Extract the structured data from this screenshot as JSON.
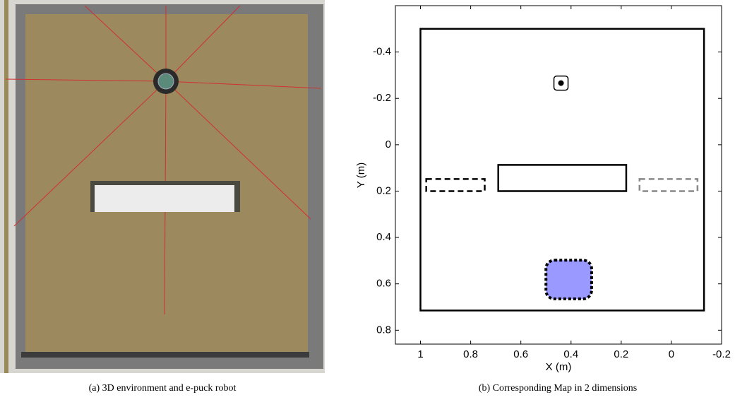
{
  "captions": [
    "(a)  3D environment and e-puck robot",
    "(b)  Corresponding Map in 2 dimensions"
  ],
  "chart_data": {
    "type": "map",
    "xlabel": "X (m)",
    "ylabel": "Y (m)",
    "xlim": [
      1.1,
      -0.2
    ],
    "ylim": [
      -0.6,
      0.86
    ],
    "xticks": [
      1,
      0.8,
      0.6,
      0.4,
      0.2,
      0,
      -0.2
    ],
    "yticks": [
      -0.4,
      -0.2,
      0,
      0.2,
      0.4,
      0.6,
      0.8
    ],
    "rectangles": [
      {
        "x": [
          1,
          -0.13
        ],
        "y": [
          -0.5,
          0.715
        ],
        "stroke": "#000000",
        "fill": "none",
        "dash": "solid"
      },
      {
        "x": [
          0.69,
          0.18
        ],
        "y": [
          0.087,
          0.2
        ],
        "stroke": "#000000",
        "fill": "none",
        "dash": "solid"
      },
      {
        "x": [
          0.977,
          0.744
        ],
        "y": [
          0.148,
          0.2
        ],
        "stroke": "#000000",
        "fill": "none",
        "dash": "dashed"
      },
      {
        "x": [
          0.127,
          -0.104
        ],
        "y": [
          0.148,
          0.2
        ],
        "stroke": "#888888",
        "fill": "none",
        "dash": "dashed"
      },
      {
        "x": [
          0.5,
          0.318
        ],
        "y": [
          0.498,
          0.665
        ],
        "stroke": "#000000",
        "fill": "#9999ff",
        "dash": "dotted"
      }
    ],
    "robot": {
      "x": 0.44,
      "y": -0.266,
      "color": "#000000"
    }
  }
}
